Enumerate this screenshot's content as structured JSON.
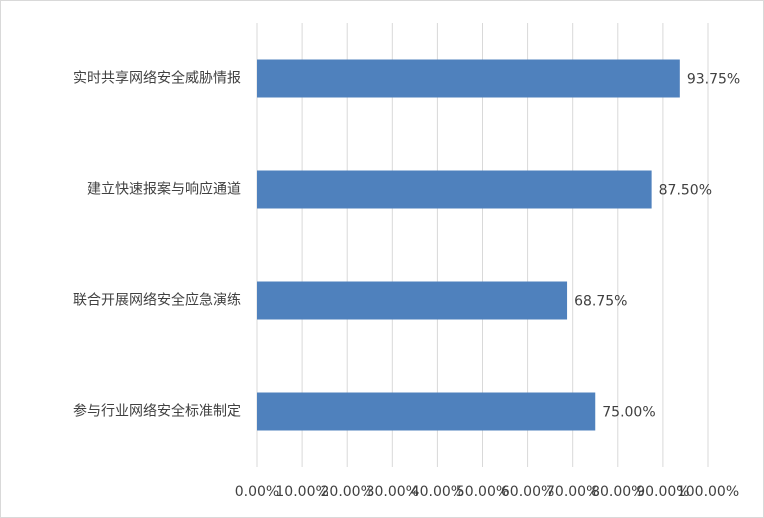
{
  "chart_data": {
    "type": "bar",
    "orientation": "horizontal",
    "categories": [
      "实时共享网络安全威胁情报",
      "建立快速报案与响应通道",
      "联合开展网络安全应急演练",
      "参与行业网络安全标准制定"
    ],
    "values": [
      93.75,
      87.5,
      68.75,
      75
    ],
    "value_labels": [
      "93.75%",
      "87.50%",
      "68.75%",
      "75.00%"
    ],
    "color": "#4f81bd",
    "xlim": [
      0,
      100
    ],
    "xticks": [
      {
        "value": 0,
        "label": "0.00%"
      },
      {
        "value": 10,
        "label": "10.00%"
      },
      {
        "value": 20,
        "label": "20.00%"
      },
      {
        "value": 30,
        "label": "30.00%"
      },
      {
        "value": 40,
        "label": "40.00%"
      },
      {
        "value": 50,
        "label": "50.00%"
      },
      {
        "value": 60,
        "label": "60.00%"
      },
      {
        "value": 70,
        "label": "70.00%"
      },
      {
        "value": 80,
        "label": "80.00%"
      },
      {
        "value": 90,
        "label": "90.00%"
      },
      {
        "value": 100,
        "label": "100.00%"
      }
    ],
    "grid": true
  }
}
